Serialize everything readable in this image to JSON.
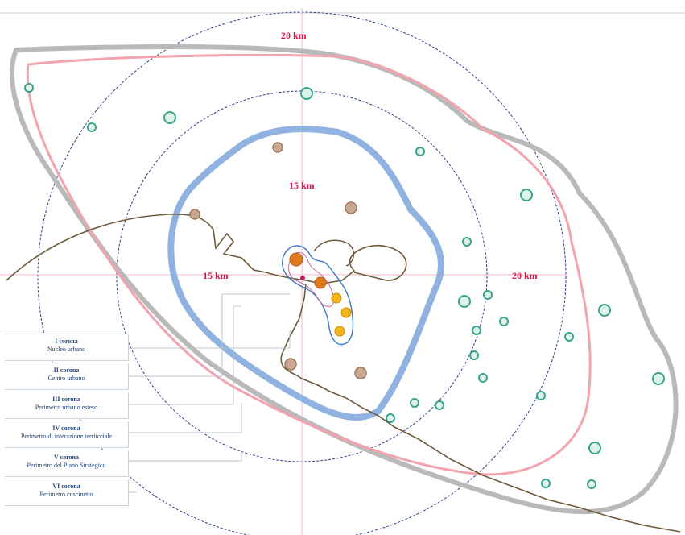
{
  "distance_labels": {
    "top_20": "20 km",
    "inner_15": "15 km",
    "left_15": "15 km",
    "right_20": "20 km"
  },
  "legend": [
    {
      "title": "I corona",
      "subtitle": "Nucleo urbano"
    },
    {
      "title": "II corona",
      "subtitle": "Centro urbano"
    },
    {
      "title": "III corona",
      "subtitle": "Perimetro urbano esteso"
    },
    {
      "title": "IV corona",
      "subtitle": "Perimetro di interazione territoriale"
    },
    {
      "title": "V corona",
      "subtitle": "Perimetro del Piano Strategico"
    },
    {
      "title": "VI corona",
      "subtitle": "Perimetro cuscinetto"
    }
  ],
  "colors": {
    "outer_boundary": "#b9b9b9",
    "strategic_plan": "#f2a3ae",
    "urban_perimeter": "#8fb2e0",
    "core_outline": "#3c78c6",
    "rings": "#2d3f8a",
    "axes": "#f2b7c6",
    "river": "#6e5a3a",
    "green_marker": "#3aa38a",
    "brown_marker": "#a27a5e",
    "orange_marker": "#e07a1f",
    "yellow_marker": "#f2b51d"
  },
  "icons": {
    "green_marker": "green-circle-marker-icon",
    "brown_marker": "brown-circle-marker-icon",
    "orange_marker": "orange-circle-marker-icon",
    "yellow_marker": "yellow-circle-marker-icon"
  }
}
